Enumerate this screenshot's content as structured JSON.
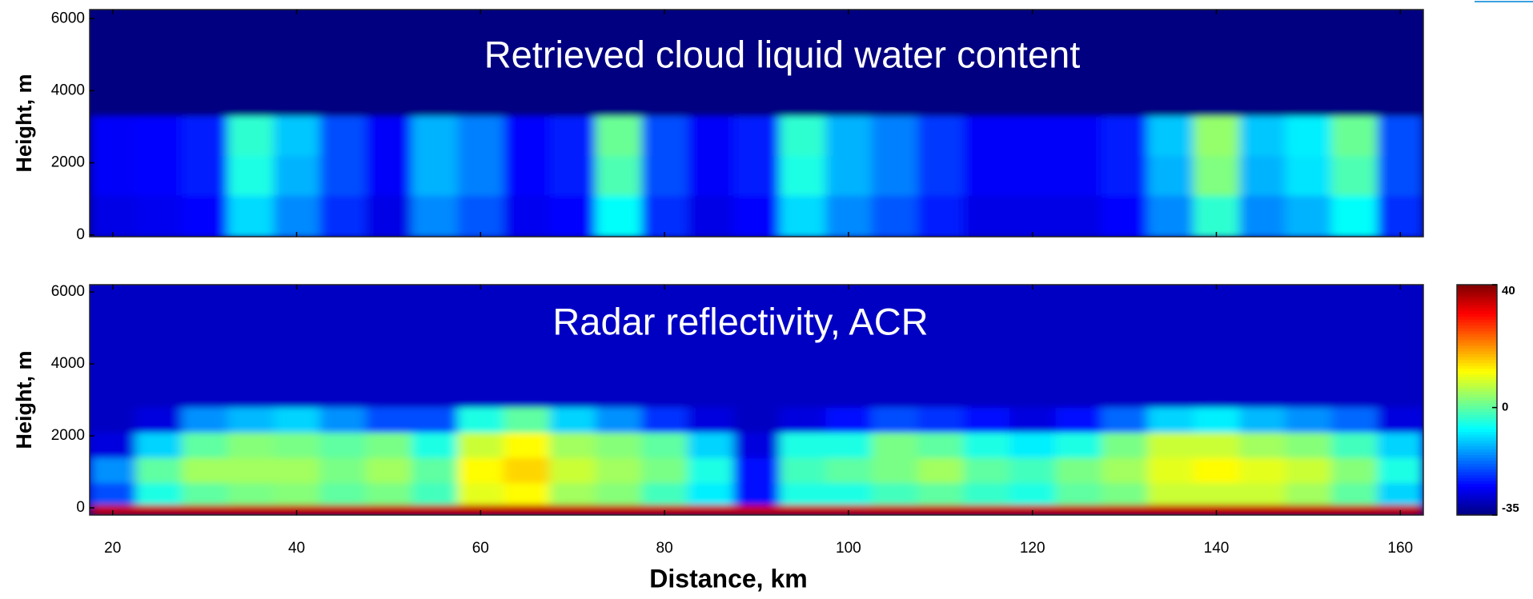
{
  "chart_data": [
    {
      "type": "heatmap",
      "title": "Retrieved cloud liquid water content",
      "ylabel": "Height, m",
      "xlim": [
        17.5,
        162.5
      ],
      "ylim": [
        -50,
        6250
      ],
      "xticks": [
        20,
        40,
        60,
        80,
        100,
        120,
        140,
        160
      ],
      "yticks": [
        0,
        2000,
        4000,
        6000
      ],
      "xbins": [
        17.5,
        22.5,
        27.5,
        32.5,
        37.5,
        42.5,
        47.5,
        52.5,
        57.5,
        62.5,
        67.5,
        72.5,
        77.5,
        82.5,
        87.5,
        92.5,
        97.5,
        102.5,
        107.5,
        112.5,
        117.5,
        122.5,
        127.5,
        132.5,
        137.5,
        142.5,
        147.5,
        152.5,
        157.5,
        162.5
      ],
      "ybins": [
        -50,
        1100,
        2200,
        3300,
        6250
      ],
      "zlim": [
        0,
        1
      ],
      "z": [
        [
          0.1,
          0.11,
          0.13,
          0.34,
          0.26,
          0.17,
          0.1,
          0.26,
          0.21,
          0.11,
          0.13,
          0.38,
          0.17,
          0.1,
          0.13,
          0.34,
          0.26,
          0.21,
          0.15,
          0.1,
          0.1,
          0.1,
          0.13,
          0.26,
          0.42,
          0.26,
          0.3,
          0.38,
          0.17
        ],
        [
          0.12,
          0.13,
          0.15,
          0.4,
          0.3,
          0.2,
          0.12,
          0.3,
          0.25,
          0.13,
          0.15,
          0.45,
          0.2,
          0.12,
          0.15,
          0.4,
          0.3,
          0.25,
          0.18,
          0.12,
          0.12,
          0.12,
          0.15,
          0.3,
          0.5,
          0.3,
          0.35,
          0.45,
          0.2
        ],
        [
          0.12,
          0.13,
          0.15,
          0.42,
          0.32,
          0.2,
          0.12,
          0.3,
          0.25,
          0.13,
          0.15,
          0.48,
          0.2,
          0.12,
          0.15,
          0.42,
          0.3,
          0.25,
          0.18,
          0.12,
          0.12,
          0.12,
          0.15,
          0.32,
          0.52,
          0.32,
          0.36,
          0.48,
          0.2
        ],
        [
          0,
          0,
          0,
          0,
          0,
          0,
          0,
          0,
          0,
          0,
          0,
          0,
          0,
          0,
          0,
          0,
          0,
          0,
          0,
          0,
          0,
          0,
          0,
          0,
          0,
          0,
          0,
          0,
          0
        ]
      ]
    },
    {
      "type": "heatmap",
      "title": "Radar reflectivity, ACR",
      "ylabel": "Height, m",
      "xlabel": "Distance, km",
      "xlim": [
        17.5,
        162.5
      ],
      "ylim": [
        -200,
        6200
      ],
      "xticks": [
        20,
        40,
        60,
        80,
        100,
        120,
        140,
        160
      ],
      "yticks": [
        0,
        2000,
        4000,
        6000
      ],
      "xbins": [
        17.5,
        22.5,
        27.5,
        32.5,
        37.5,
        42.5,
        47.5,
        52.5,
        57.5,
        62.5,
        67.5,
        72.5,
        77.5,
        82.5,
        87.5,
        92.5,
        97.5,
        102.5,
        107.5,
        112.5,
        117.5,
        122.5,
        127.5,
        132.5,
        137.5,
        142.5,
        147.5,
        152.5,
        157.5,
        162.5
      ],
      "ybins": [
        -200,
        100,
        700,
        1400,
        2100,
        2800,
        6200
      ],
      "zlim": [
        -35,
        40
      ],
      "zticks": [
        -35,
        0,
        40
      ],
      "z": [
        [
          35,
          35,
          35,
          35,
          35,
          35,
          35,
          35,
          35,
          35,
          35,
          35,
          35,
          35,
          35,
          35,
          35,
          35,
          35,
          35,
          35,
          35,
          35,
          35,
          35,
          35,
          35,
          35,
          35
        ],
        [
          -20,
          -5,
          0,
          2,
          3,
          0,
          2,
          -2,
          10,
          12,
          5,
          3,
          -2,
          -8,
          -25,
          -5,
          -5,
          -2,
          0,
          -3,
          -5,
          0,
          2,
          8,
          8,
          8,
          5,
          0,
          -10
        ],
        [
          -15,
          0,
          5,
          5,
          5,
          2,
          5,
          0,
          12,
          15,
          8,
          5,
          2,
          -5,
          -25,
          -2,
          0,
          2,
          5,
          0,
          -2,
          2,
          5,
          10,
          12,
          10,
          8,
          3,
          -5
        ],
        [
          -28,
          -10,
          0,
          3,
          2,
          0,
          2,
          -5,
          8,
          12,
          5,
          3,
          0,
          -10,
          -28,
          -5,
          -5,
          2,
          0,
          -5,
          -8,
          -5,
          2,
          8,
          8,
          5,
          3,
          -2,
          -10
        ],
        [
          -30,
          -28,
          -15,
          -12,
          -10,
          -15,
          -20,
          -20,
          -5,
          0,
          -10,
          -15,
          -22,
          -28,
          -30,
          -28,
          -25,
          -20,
          -22,
          -25,
          -28,
          -25,
          -18,
          -10,
          -8,
          -12,
          -15,
          -18,
          -28
        ],
        [
          -30,
          -30,
          -30,
          -30,
          -30,
          -30,
          -30,
          -30,
          -30,
          -30,
          -30,
          -30,
          -30,
          -30,
          -30,
          -30,
          -30,
          -30,
          -30,
          -30,
          -30,
          -30,
          -30,
          -30,
          -30,
          -30,
          -30,
          -30,
          -30
        ]
      ]
    }
  ]
}
